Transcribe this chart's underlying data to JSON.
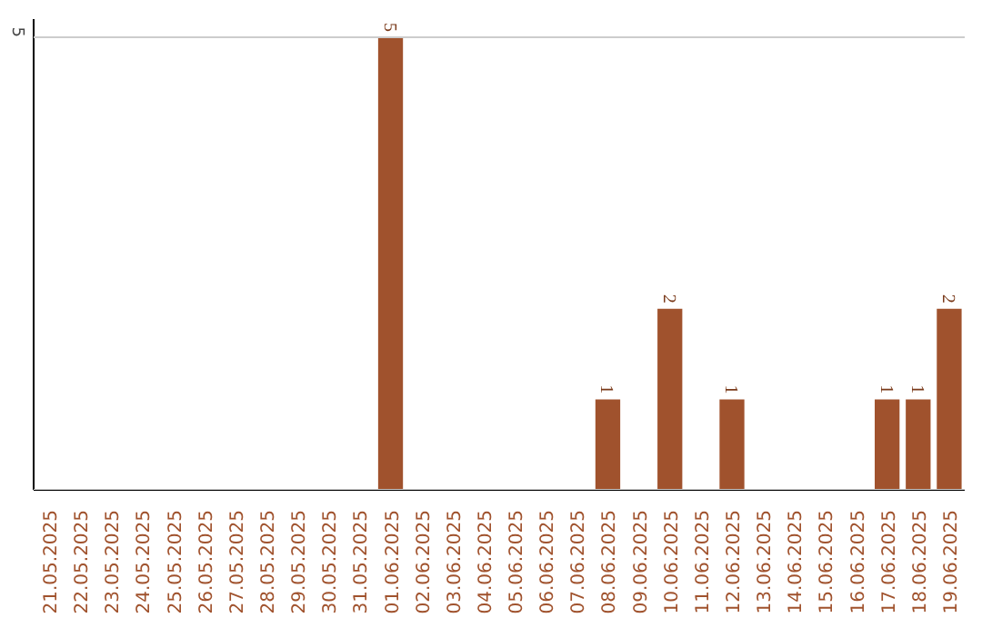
{
  "chart_data": {
    "type": "bar",
    "categories": [
      "21.05.2025",
      "22.05.2025",
      "23.05.2025",
      "24.05.2025",
      "25.05.2025",
      "26.05.2025",
      "27.05.2025",
      "28.05.2025",
      "29.05.2025",
      "30.05.2025",
      "31.05.2025",
      "01.06.2025",
      "02.06.2025",
      "03.06.2025",
      "04.06.2025",
      "05.06.2025",
      "06.06.2025",
      "07.06.2025",
      "08.06.2025",
      "09.06.2025",
      "10.06.2025",
      "11.06.2025",
      "12.06.2025",
      "13.06.2025",
      "14.06.2025",
      "15.06.2025",
      "16.06.2025",
      "17.06.2025",
      "18.06.2025",
      "19.06.2025"
    ],
    "values": [
      0,
      0,
      0,
      0,
      0,
      0,
      0,
      0,
      0,
      0,
      0,
      5,
      0,
      0,
      0,
      0,
      0,
      0,
      1,
      0,
      2,
      0,
      1,
      0,
      0,
      0,
      0,
      1,
      1,
      2
    ],
    "value_labels": [
      null,
      null,
      null,
      null,
      null,
      null,
      null,
      null,
      null,
      null,
      null,
      "5",
      null,
      null,
      null,
      null,
      null,
      null,
      "1",
      null,
      "2",
      null,
      "1",
      null,
      null,
      null,
      null,
      "1",
      "1",
      "2"
    ],
    "color": "#a0522d",
    "ylim": [
      0,
      5.2
    ],
    "yticks": [
      {
        "value": 0,
        "label": null
      },
      5
    ],
    "grid": "y"
  }
}
